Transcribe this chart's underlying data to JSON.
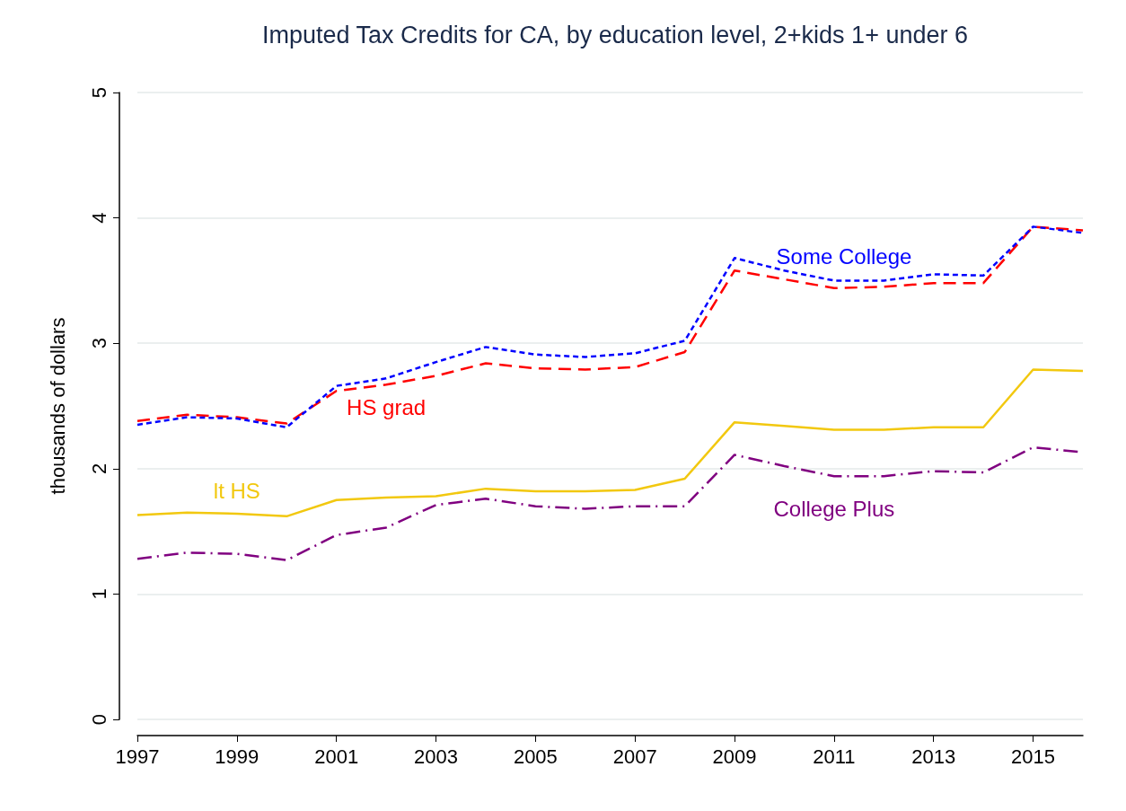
{
  "chart_data": {
    "type": "line",
    "title": "Imputed Tax Credits for CA, by education level, 2+kids 1+ under 6",
    "ylabel": "thousands of dollars",
    "x": [
      1997,
      1998,
      1999,
      2000,
      2001,
      2002,
      2003,
      2004,
      2005,
      2006,
      2007,
      2008,
      2009,
      2010,
      2011,
      2012,
      2013,
      2014,
      2015,
      2016
    ],
    "series": [
      {
        "name": "lt HS",
        "color": "#f2c80f",
        "line_style": "solid",
        "values": [
          1.63,
          1.65,
          1.64,
          1.62,
          1.75,
          1.77,
          1.78,
          1.84,
          1.82,
          1.82,
          1.83,
          1.92,
          2.37,
          2.34,
          2.31,
          2.31,
          2.33,
          2.33,
          2.79,
          2.78
        ]
      },
      {
        "name": "HS grad",
        "color": "#ff0000",
        "line_style": "dashed",
        "values": [
          2.38,
          2.43,
          2.41,
          2.36,
          2.62,
          2.67,
          2.74,
          2.84,
          2.8,
          2.79,
          2.81,
          2.93,
          3.58,
          3.51,
          3.44,
          3.45,
          3.48,
          3.48,
          3.93,
          3.9
        ]
      },
      {
        "name": "Some College",
        "color": "#0000ff",
        "line_style": "dotted",
        "values": [
          2.35,
          2.41,
          2.4,
          2.33,
          2.66,
          2.72,
          2.85,
          2.97,
          2.91,
          2.89,
          2.92,
          3.02,
          3.68,
          3.58,
          3.5,
          3.5,
          3.55,
          3.54,
          3.93,
          3.88
        ]
      },
      {
        "name": "College Plus",
        "color": "#800080",
        "line_style": "dashdot",
        "values": [
          1.28,
          1.33,
          1.32,
          1.27,
          1.47,
          1.53,
          1.71,
          1.76,
          1.7,
          1.68,
          1.7,
          1.7,
          2.11,
          2.02,
          1.94,
          1.94,
          1.98,
          1.97,
          2.17,
          2.13
        ]
      }
    ],
    "xlim": [
      1997,
      2016
    ],
    "xticks": [
      1997,
      1999,
      2001,
      2003,
      2005,
      2007,
      2009,
      2011,
      2013,
      2015
    ],
    "ylim": [
      0,
      5
    ],
    "yticks": [
      0,
      1,
      2,
      3,
      4,
      5
    ],
    "grid": "y",
    "legend": false,
    "marker": "none"
  }
}
